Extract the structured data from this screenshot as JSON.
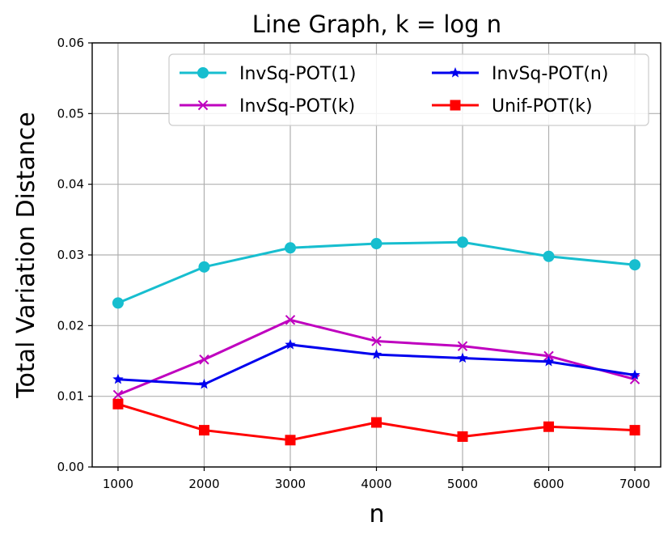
{
  "chart_data": {
    "type": "line",
    "title": "Line Graph, k = log n",
    "xlabel": "n",
    "ylabel": "Total Variation Distance",
    "x": [
      1000,
      2000,
      3000,
      4000,
      5000,
      6000,
      7000
    ],
    "x_ticks": [
      1000,
      2000,
      3000,
      4000,
      5000,
      6000,
      7000
    ],
    "xlim": [
      700,
      7300
    ],
    "ylim": [
      0.0,
      0.06
    ],
    "y_ticks": [
      0.0,
      0.01,
      0.02,
      0.03,
      0.04,
      0.05,
      0.06
    ],
    "y_tick_labels": [
      "0.00",
      "0.01",
      "0.02",
      "0.03",
      "0.04",
      "0.05",
      "0.06"
    ],
    "grid": true,
    "legend_position": "top-right",
    "series": [
      {
        "name": "InvSq-POT(1)",
        "color": "#17becf",
        "marker": "circle",
        "values": [
          0.0232,
          0.0283,
          0.031,
          0.0316,
          0.0318,
          0.0298,
          0.0286
        ]
      },
      {
        "name": "InvSq-POT(k)",
        "color": "#bf00bf",
        "marker": "x",
        "values": [
          0.0102,
          0.0152,
          0.0208,
          0.0178,
          0.0171,
          0.0157,
          0.0124
        ]
      },
      {
        "name": "InvSq-POT(n)",
        "color": "#0000ee",
        "marker": "star",
        "values": [
          0.0124,
          0.0117,
          0.0173,
          0.0159,
          0.0154,
          0.0149,
          0.013
        ]
      },
      {
        "name": "Unif-POT(k)",
        "color": "#ff0000",
        "marker": "square",
        "values": [
          0.0089,
          0.0052,
          0.0038,
          0.0063,
          0.0043,
          0.0057,
          0.0052
        ]
      }
    ],
    "legend_order": [
      0,
      2,
      1,
      3
    ]
  }
}
